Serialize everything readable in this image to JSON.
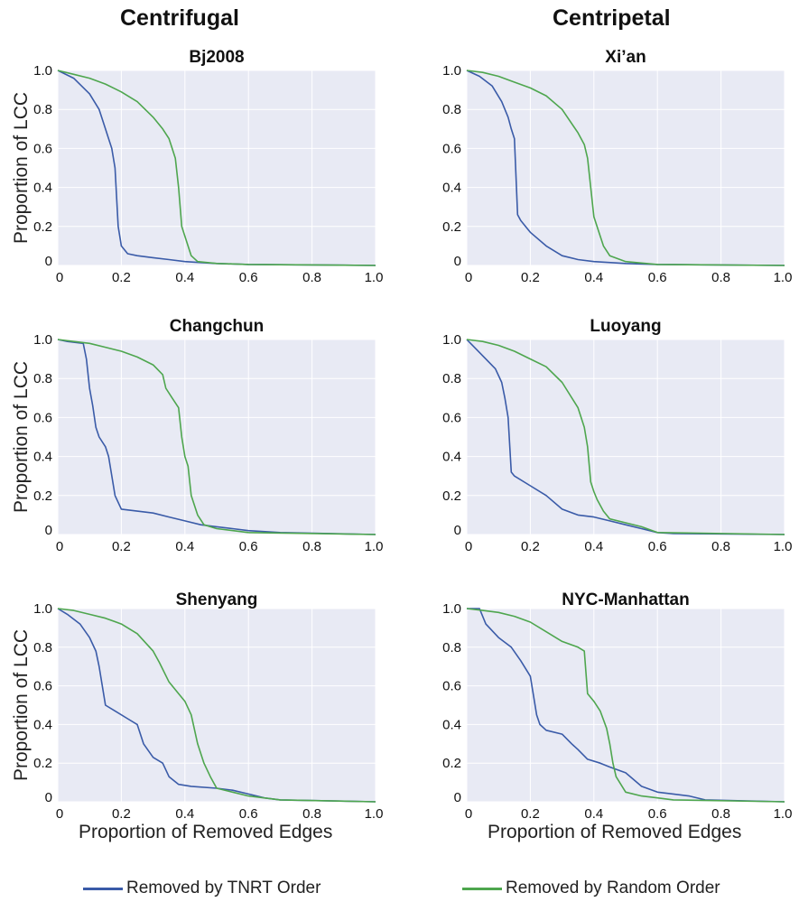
{
  "column_titles": [
    "Centrifugal",
    "Centripetal"
  ],
  "shared_xlabel": "Proportion of Removed Edges",
  "shared_ylabel": "Proportion of LCC",
  "legend": [
    {
      "label": "Removed by TNRT Order",
      "color": "#3a5ba8"
    },
    {
      "label": "Removed by Random Order",
      "color": "#4ea64e"
    }
  ],
  "colors": {
    "plot_bg": "#e8eaf4",
    "grid": "#ffffff",
    "tnrt": "#3a5ba8",
    "random": "#4ea64e"
  },
  "chart_data": [
    {
      "type": "line",
      "title": "Bj2008",
      "xlabel": "",
      "ylabel": "Proportion of LCC",
      "xlim": [
        0,
        1
      ],
      "ylim": [
        0,
        1
      ],
      "grid": true,
      "xticks": [
        "0",
        "0.2",
        "0.4",
        "0.6",
        "0.8",
        "1.0"
      ],
      "yticks": [
        "0",
        "0.2",
        "0.4",
        "0.6",
        "0.8",
        "1.0"
      ],
      "series": [
        {
          "name": "Removed by TNRT Order",
          "x": [
            0,
            0.05,
            0.1,
            0.13,
            0.15,
            0.17,
            0.18,
            0.19,
            0.2,
            0.22,
            0.25,
            0.3,
            0.35,
            0.4,
            0.45,
            0.5,
            0.6,
            1.0
          ],
          "y": [
            1.0,
            0.96,
            0.88,
            0.8,
            0.7,
            0.6,
            0.5,
            0.2,
            0.1,
            0.06,
            0.05,
            0.04,
            0.03,
            0.02,
            0.015,
            0.01,
            0.005,
            0.0
          ]
        },
        {
          "name": "Removed by Random Order",
          "x": [
            0,
            0.05,
            0.1,
            0.15,
            0.2,
            0.25,
            0.3,
            0.33,
            0.35,
            0.36,
            0.37,
            0.38,
            0.39,
            0.4,
            0.42,
            0.44,
            0.5,
            0.6,
            1.0
          ],
          "y": [
            1.0,
            0.98,
            0.96,
            0.93,
            0.89,
            0.84,
            0.76,
            0.7,
            0.65,
            0.6,
            0.55,
            0.4,
            0.2,
            0.15,
            0.05,
            0.02,
            0.01,
            0.005,
            0.0
          ]
        }
      ]
    },
    {
      "type": "line",
      "title": "Xi’an",
      "xlabel": "",
      "ylabel": "",
      "xlim": [
        0,
        1
      ],
      "ylim": [
        0,
        1
      ],
      "grid": true,
      "xticks": [
        "0",
        "0.2",
        "0.4",
        "0.6",
        "0.8",
        "1.0"
      ],
      "yticks": [
        "0",
        "0.2",
        "0.4",
        "0.6",
        "0.8",
        "1.0"
      ],
      "series": [
        {
          "name": "Removed by TNRT Order",
          "x": [
            0,
            0.04,
            0.08,
            0.11,
            0.13,
            0.14,
            0.15,
            0.16,
            0.17,
            0.2,
            0.25,
            0.3,
            0.35,
            0.4,
            0.5,
            0.6,
            1.0
          ],
          "y": [
            1.0,
            0.97,
            0.92,
            0.84,
            0.76,
            0.7,
            0.65,
            0.26,
            0.23,
            0.17,
            0.1,
            0.05,
            0.03,
            0.02,
            0.01,
            0.005,
            0.0
          ]
        },
        {
          "name": "Removed by Random Order",
          "x": [
            0,
            0.05,
            0.1,
            0.15,
            0.2,
            0.25,
            0.3,
            0.35,
            0.37,
            0.38,
            0.39,
            0.4,
            0.41,
            0.43,
            0.45,
            0.5,
            0.6,
            1.0
          ],
          "y": [
            1.0,
            0.99,
            0.97,
            0.94,
            0.91,
            0.87,
            0.8,
            0.68,
            0.62,
            0.55,
            0.4,
            0.25,
            0.2,
            0.1,
            0.05,
            0.02,
            0.005,
            0.0
          ]
        }
      ]
    },
    {
      "type": "line",
      "title": "Changchun",
      "xlabel": "",
      "ylabel": "Proportion of LCC",
      "xlim": [
        0,
        1
      ],
      "ylim": [
        0,
        1
      ],
      "grid": true,
      "xticks": [
        "0",
        "0.2",
        "0.4",
        "0.6",
        "0.8",
        "1.0"
      ],
      "yticks": [
        "0",
        "0.2",
        "0.4",
        "0.6",
        "0.8",
        "1.0"
      ],
      "series": [
        {
          "name": "Removed by TNRT Order",
          "x": [
            0,
            0.03,
            0.08,
            0.09,
            0.1,
            0.11,
            0.12,
            0.13,
            0.15,
            0.16,
            0.18,
            0.2,
            0.25,
            0.3,
            0.35,
            0.4,
            0.45,
            0.5,
            0.55,
            0.6,
            0.7,
            1.0
          ],
          "y": [
            1.0,
            0.99,
            0.98,
            0.9,
            0.75,
            0.66,
            0.55,
            0.5,
            0.45,
            0.4,
            0.2,
            0.13,
            0.12,
            0.11,
            0.09,
            0.07,
            0.05,
            0.04,
            0.03,
            0.02,
            0.01,
            0.0
          ]
        },
        {
          "name": "Removed by Random Order",
          "x": [
            0,
            0.05,
            0.1,
            0.15,
            0.2,
            0.25,
            0.3,
            0.33,
            0.34,
            0.36,
            0.38,
            0.39,
            0.4,
            0.41,
            0.42,
            0.44,
            0.46,
            0.5,
            0.6,
            1.0
          ],
          "y": [
            1.0,
            0.99,
            0.98,
            0.96,
            0.94,
            0.91,
            0.87,
            0.82,
            0.75,
            0.7,
            0.65,
            0.5,
            0.4,
            0.35,
            0.2,
            0.1,
            0.05,
            0.03,
            0.01,
            0.0
          ]
        }
      ]
    },
    {
      "type": "line",
      "title": "Luoyang",
      "xlabel": "",
      "ylabel": "",
      "xlim": [
        0,
        1
      ],
      "ylim": [
        0,
        1
      ],
      "grid": true,
      "xticks": [
        "0",
        "0.2",
        "0.4",
        "0.6",
        "0.8",
        "1.0"
      ],
      "yticks": [
        "0",
        "0.2",
        "0.4",
        "0.6",
        "0.8",
        "1.0"
      ],
      "series": [
        {
          "name": "Removed by TNRT Order",
          "x": [
            0,
            0.03,
            0.06,
            0.09,
            0.11,
            0.12,
            0.13,
            0.14,
            0.15,
            0.2,
            0.25,
            0.3,
            0.35,
            0.4,
            0.45,
            0.5,
            0.55,
            0.6,
            0.65,
            1.0
          ],
          "y": [
            1.0,
            0.95,
            0.9,
            0.85,
            0.78,
            0.7,
            0.6,
            0.32,
            0.3,
            0.25,
            0.2,
            0.13,
            0.1,
            0.09,
            0.07,
            0.05,
            0.03,
            0.01,
            0.005,
            0.0
          ]
        },
        {
          "name": "Removed by Random Order",
          "x": [
            0,
            0.05,
            0.1,
            0.15,
            0.2,
            0.25,
            0.3,
            0.35,
            0.37,
            0.38,
            0.39,
            0.4,
            0.41,
            0.43,
            0.45,
            0.5,
            0.55,
            0.6,
            1.0
          ],
          "y": [
            1.0,
            0.99,
            0.97,
            0.94,
            0.9,
            0.86,
            0.78,
            0.65,
            0.55,
            0.45,
            0.27,
            0.22,
            0.18,
            0.12,
            0.08,
            0.06,
            0.04,
            0.01,
            0.0
          ]
        }
      ]
    },
    {
      "type": "line",
      "title": "Shenyang",
      "xlabel": "Proportion of Removed Edges",
      "ylabel": "Proportion of LCC",
      "xlim": [
        0,
        1
      ],
      "ylim": [
        0,
        1
      ],
      "grid": true,
      "xticks": [
        "0",
        "0.2",
        "0.4",
        "0.6",
        "0.8",
        "1.0"
      ],
      "yticks": [
        "0",
        "0.2",
        "0.4",
        "0.6",
        "0.8",
        "1.0"
      ],
      "series": [
        {
          "name": "Removed by TNRT Order",
          "x": [
            0,
            0.03,
            0.07,
            0.1,
            0.12,
            0.13,
            0.14,
            0.15,
            0.18,
            0.22,
            0.25,
            0.27,
            0.3,
            0.33,
            0.35,
            0.38,
            0.42,
            0.5,
            0.55,
            0.6,
            0.65,
            0.7,
            1.0
          ],
          "y": [
            1.0,
            0.97,
            0.92,
            0.85,
            0.78,
            0.7,
            0.6,
            0.5,
            0.47,
            0.43,
            0.4,
            0.3,
            0.23,
            0.2,
            0.13,
            0.09,
            0.08,
            0.07,
            0.06,
            0.04,
            0.02,
            0.01,
            0.0
          ]
        },
        {
          "name": "Removed by Random Order",
          "x": [
            0,
            0.05,
            0.1,
            0.15,
            0.2,
            0.25,
            0.3,
            0.32,
            0.35,
            0.38,
            0.4,
            0.42,
            0.44,
            0.46,
            0.48,
            0.5,
            0.55,
            0.6,
            0.7,
            1.0
          ],
          "y": [
            1.0,
            0.99,
            0.97,
            0.95,
            0.92,
            0.87,
            0.78,
            0.72,
            0.62,
            0.56,
            0.52,
            0.45,
            0.3,
            0.2,
            0.13,
            0.07,
            0.05,
            0.03,
            0.01,
            0.0
          ]
        }
      ]
    },
    {
      "type": "line",
      "title": "NYC-Manhattan",
      "xlabel": "Proportion of Removed Edges",
      "ylabel": "",
      "xlim": [
        0,
        1
      ],
      "ylim": [
        0,
        1
      ],
      "grid": true,
      "xticks": [
        "0",
        "0.2",
        "0.4",
        "0.6",
        "0.8",
        "1.0"
      ],
      "yticks": [
        "0",
        "0.2",
        "0.4",
        "0.6",
        "0.8",
        "1.0"
      ],
      "series": [
        {
          "name": "Removed by TNRT Order",
          "x": [
            0,
            0.04,
            0.06,
            0.1,
            0.14,
            0.17,
            0.2,
            0.21,
            0.22,
            0.23,
            0.25,
            0.3,
            0.33,
            0.35,
            0.38,
            0.42,
            0.45,
            0.5,
            0.55,
            0.6,
            0.65,
            0.7,
            0.75,
            1.0
          ],
          "y": [
            1.0,
            1.0,
            0.92,
            0.85,
            0.8,
            0.73,
            0.65,
            0.55,
            0.45,
            0.4,
            0.37,
            0.35,
            0.3,
            0.27,
            0.22,
            0.2,
            0.18,
            0.15,
            0.08,
            0.05,
            0.04,
            0.03,
            0.01,
            0.0
          ]
        },
        {
          "name": "Removed by Random Order",
          "x": [
            0,
            0.05,
            0.1,
            0.15,
            0.2,
            0.25,
            0.3,
            0.35,
            0.37,
            0.38,
            0.4,
            0.42,
            0.44,
            0.45,
            0.46,
            0.47,
            0.5,
            0.55,
            0.6,
            0.65,
            1.0
          ],
          "y": [
            1.0,
            0.99,
            0.98,
            0.96,
            0.93,
            0.88,
            0.83,
            0.8,
            0.78,
            0.56,
            0.52,
            0.47,
            0.38,
            0.3,
            0.2,
            0.13,
            0.05,
            0.03,
            0.02,
            0.01,
            0.0
          ]
        }
      ]
    }
  ]
}
